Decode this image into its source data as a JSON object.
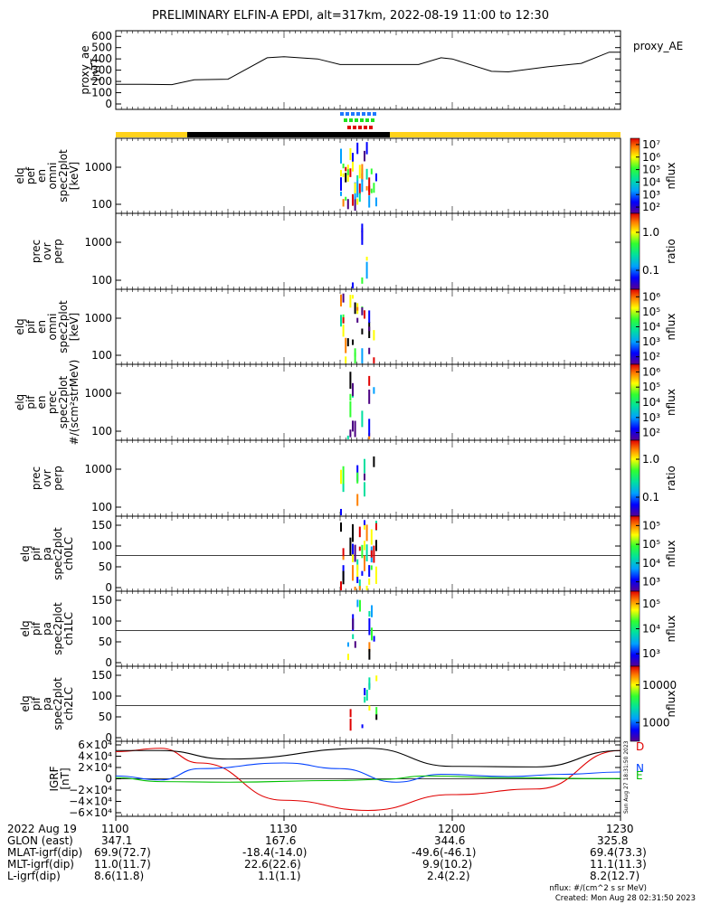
{
  "title": "PRELIMINARY ELFIN-A EPDI, alt=317km, 2022-08-19 11:00 to 12:30",
  "panels": [
    {
      "id": "ae",
      "ylabel": [
        "proxy_ae",
        "[nT]"
      ],
      "right": "proxy_AE",
      "yticks": [
        "0",
        "100",
        "200",
        "300",
        "400",
        "500",
        "600"
      ]
    },
    {
      "id": "p1",
      "ylabel": [
        "elq",
        "pef",
        "en",
        "omni",
        "spec2plot",
        "[keV]"
      ],
      "yticks": [
        "100",
        "1000"
      ],
      "cbar": "nflux",
      "cbticks": [
        "10²",
        "10³",
        "10⁴",
        "10⁵",
        "10⁶",
        "10⁷"
      ]
    },
    {
      "id": "p2",
      "ylabel": [
        "prec",
        "ovr",
        "perp"
      ],
      "yticks": [
        "100",
        "1000"
      ],
      "cbar": "ratio",
      "cbticks": [
        "0.1",
        "1.0"
      ]
    },
    {
      "id": "p3",
      "ylabel": [
        "elq",
        "pif",
        "en",
        "omni",
        "spec2plot",
        "[keV]"
      ],
      "yticks": [
        "100",
        "1000"
      ],
      "cbar": "nflux",
      "cbticks": [
        "10²",
        "10³",
        "10⁴",
        "10⁵",
        "10⁶"
      ]
    },
    {
      "id": "p4",
      "ylabel": [
        "elq",
        "pif",
        "en",
        "prec",
        "spec2plot",
        "#/(scm²strMeV)"
      ],
      "yticks": [
        "100",
        "1000"
      ],
      "cbar": "nflux",
      "cbticks": [
        "10²",
        "10³",
        "10⁴",
        "10⁵",
        "10⁶"
      ]
    },
    {
      "id": "p5",
      "ylabel": [
        "prec",
        "ovr",
        "perp"
      ],
      "yticks": [
        "100",
        "1000"
      ],
      "cbar": "ratio",
      "cbticks": [
        "0.1",
        "1.0"
      ]
    },
    {
      "id": "p6",
      "ylabel": [
        "elq",
        "pif",
        "pa",
        "spec2plot",
        "ch0LC"
      ],
      "yticks": [
        "0",
        "50",
        "100",
        "150"
      ],
      "cbar": "nflux",
      "cbticks": [
        "10³",
        "10⁴",
        "10⁵",
        "10⁵"
      ]
    },
    {
      "id": "p7",
      "ylabel": [
        "elq",
        "pif",
        "pa",
        "spec2plot",
        "ch1LC"
      ],
      "yticks": [
        "0",
        "50",
        "100",
        "150"
      ],
      "cbar": "nflux",
      "cbticks": [
        "10³",
        "10⁴",
        "10⁵"
      ]
    },
    {
      "id": "p8",
      "ylabel": [
        "elq",
        "pif",
        "pa",
        "spec2plot",
        "ch2LC"
      ],
      "yticks": [
        "0",
        "50",
        "100",
        "150"
      ],
      "cbar": "nflux",
      "cbticks": [
        "1000",
        "10000"
      ]
    },
    {
      "id": "igrf",
      "ylabel": [
        "IGRF",
        "[nT]"
      ],
      "yticks": [
        "−6×10⁴",
        "−4×10⁴",
        "−2×10⁴",
        "0",
        "2×10⁴",
        "4×10⁴",
        "6×10⁴"
      ],
      "legend": [
        "D",
        "N",
        "E"
      ]
    }
  ],
  "side_stamp": "Sun Aug 27 18:31:50 2023",
  "bottom_rows": [
    {
      "label": "2022 Aug 19",
      "values": [
        "1100",
        "1130",
        "1200",
        "1230"
      ]
    },
    {
      "label": "GLON (east)",
      "values": [
        "347.1",
        "167.6",
        "344.6",
        "325.8"
      ]
    },
    {
      "label": "MLAT-igrf(dip)",
      "values": [
        "69.9(72.7)",
        "-18.4(-14.0)",
        "-49.6(-46.1)",
        "69.4(73.3)"
      ]
    },
    {
      "label": "MLT-igrf(dip)",
      "values": [
        "11.0(11.7)",
        "22.6(22.6)",
        "9.9(10.2)",
        "11.1(11.3)"
      ]
    },
    {
      "label": "L-igrf(dip)",
      "values": [
        "8.6(11.8)",
        "1.1(1.1)",
        "2.4(2.2)",
        "8.2(12.7)"
      ]
    }
  ],
  "footer": [
    "nflux: #/(cm^2 s sr MeV)",
    "Created: Mon Aug 28 02:31:50 2023"
  ],
  "chart_data": {
    "type": "line",
    "x_range": [
      "11:00",
      "12:30"
    ],
    "proxy_ae": {
      "name": "proxy_AE",
      "ylim": [
        0,
        650
      ],
      "x": [
        "11:00",
        "11:05",
        "11:10",
        "11:14",
        "11:20",
        "11:27",
        "11:30",
        "11:36",
        "11:40",
        "11:50",
        "11:54",
        "11:58",
        "12:00",
        "12:07",
        "12:10",
        "12:17",
        "12:23",
        "12:28",
        "12:30"
      ],
      "y": [
        175,
        175,
        172,
        215,
        220,
        410,
        420,
        400,
        350,
        350,
        350,
        410,
        400,
        290,
        285,
        330,
        360,
        460,
        460
      ]
    },
    "igrf": {
      "ylim": [
        -60000,
        60000
      ],
      "series": [
        {
          "name": "D",
          "color": "#e00000",
          "x": [
            "11:00",
            "11:08",
            "11:15",
            "11:30",
            "11:45",
            "12:00",
            "12:15",
            "12:30"
          ],
          "y": [
            48000,
            54000,
            28000,
            -38000,
            -56000,
            -28000,
            -18000,
            50000
          ]
        },
        {
          "name": "N",
          "color": "#0040ff",
          "x": [
            "11:00",
            "11:08",
            "11:15",
            "11:30",
            "11:40",
            "11:50",
            "11:58",
            "12:10",
            "12:20",
            "12:30"
          ],
          "y": [
            5000,
            -2000,
            18000,
            28000,
            18000,
            -6000,
            8000,
            4000,
            8000,
            12000
          ]
        },
        {
          "name": "E",
          "color": "#00c000",
          "x": [
            "11:00",
            "11:08",
            "11:20",
            "11:40",
            "11:48",
            "11:55",
            "12:10",
            "12:25",
            "12:30"
          ],
          "y": [
            2000,
            -5000,
            -6000,
            -3000,
            -1000,
            5000,
            2000,
            500,
            500
          ]
        },
        {
          "name": "|B|",
          "color": "#000000",
          "x": [
            "11:00",
            "11:08",
            "11:20",
            "11:45",
            "12:00",
            "12:15",
            "12:30"
          ],
          "y": [
            50000,
            50000,
            35000,
            54000,
            22000,
            21000,
            50000
          ]
        }
      ]
    }
  }
}
